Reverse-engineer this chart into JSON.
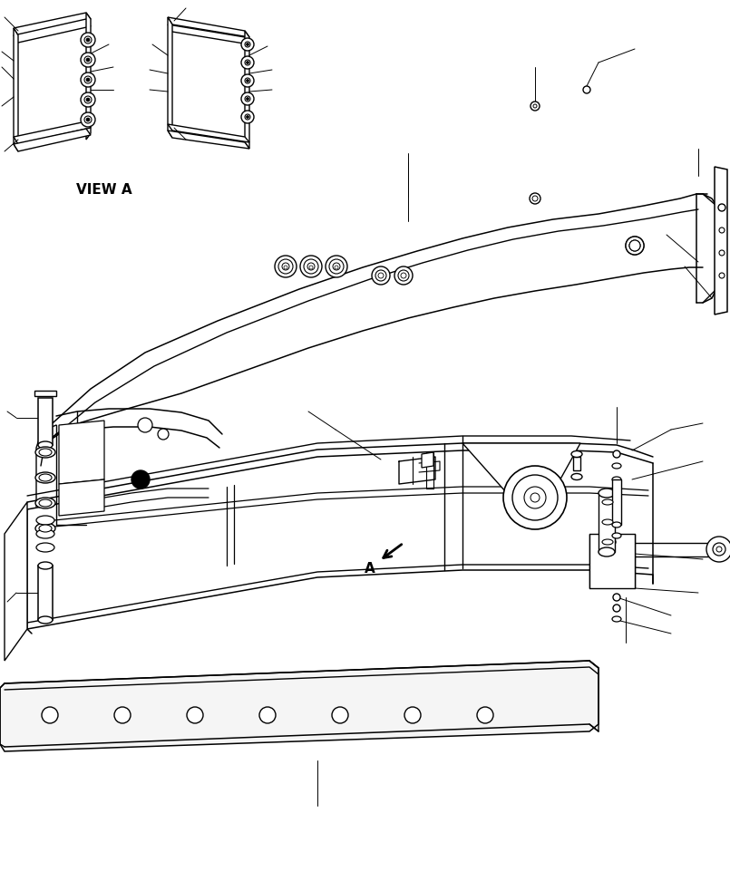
{
  "background_color": "#ffffff",
  "line_color": "#000000",
  "line_width": 1.0,
  "view_a_label": "VIEW A",
  "label_a": "A",
  "fig_width": 8.05,
  "fig_height": 9.62,
  "dpi": 100
}
